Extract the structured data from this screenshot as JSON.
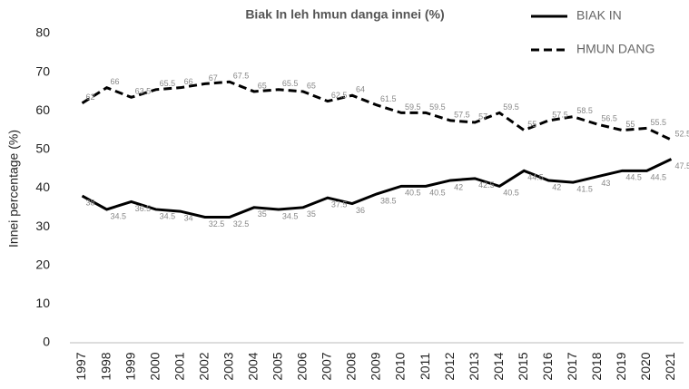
{
  "chart_data": {
    "type": "line",
    "title": "Biak In leh hmun danga innei (%)",
    "y_label": "Innei percentage (%)",
    "categories": [
      "1997",
      "1998",
      "1999",
      "2000",
      "2001",
      "2002",
      "2003",
      "2004",
      "2005",
      "2006",
      "2007",
      "2008",
      "2009",
      "2010",
      "2011",
      "2012",
      "2013",
      "2014",
      "2015",
      "2016",
      "2017",
      "2018",
      "2019",
      "2020",
      "2021"
    ],
    "series": [
      {
        "name": "BIAK IN",
        "color": "#000000",
        "dash": false,
        "values": [
          38,
          34.5,
          36.5,
          34.5,
          34,
          32.5,
          32.5,
          35,
          34.5,
          35,
          37.5,
          36,
          38.5,
          40.5,
          40.5,
          42,
          42.5,
          40.5,
          44.5,
          42,
          41.5,
          43,
          44.5,
          44.5,
          47.5
        ]
      },
      {
        "name": "HMUN DANG",
        "color": "#000000",
        "dash": true,
        "values": [
          62,
          66,
          63.5,
          65.5,
          66,
          67,
          67.5,
          65,
          65.5,
          65,
          62.5,
          64,
          61.5,
          59.5,
          59.5,
          57.5,
          57,
          59.5,
          55,
          57.5,
          58.5,
          56.5,
          55,
          55.5,
          52.5
        ]
      }
    ],
    "ylim": [
      0,
      80
    ],
    "yticks": [
      0,
      10,
      20,
      30,
      40,
      50,
      60,
      70,
      80
    ],
    "grid": false,
    "legend": "top-right"
  }
}
